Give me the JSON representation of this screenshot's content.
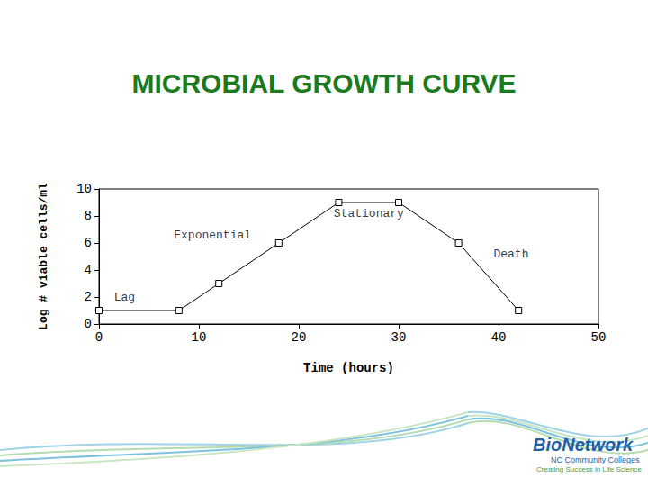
{
  "chart_data": {
    "type": "line",
    "title": "MICROBIAL GROWTH CURVE",
    "x_label": "Time (hours)",
    "y_label": "Log # viable cells/ml",
    "x": [
      0,
      8,
      12,
      18,
      24,
      30,
      36,
      42
    ],
    "values": [
      1,
      1,
      3,
      6,
      9,
      9,
      6,
      1
    ],
    "color": "#000000",
    "marker": "square",
    "xlim": [
      0,
      50
    ],
    "xticks": [
      0,
      10,
      20,
      30,
      40,
      50
    ],
    "ylim": [
      0,
      10
    ],
    "yticks": [
      0,
      2,
      4,
      6,
      8,
      10
    ],
    "grid": false,
    "annotations": [
      {
        "text": "Lag",
        "x": 1.5,
        "y": 2.0
      },
      {
        "text": "Exponential",
        "x": 7.5,
        "y": 6.6
      },
      {
        "text": "Stationary",
        "x": 23.5,
        "y": 8.2
      },
      {
        "text": "Death",
        "x": 39.5,
        "y": 5.2
      }
    ],
    "credits": [
      "BioNetwork",
      "NC Community Colleges",
      "Creating Success in Life Science"
    ]
  }
}
